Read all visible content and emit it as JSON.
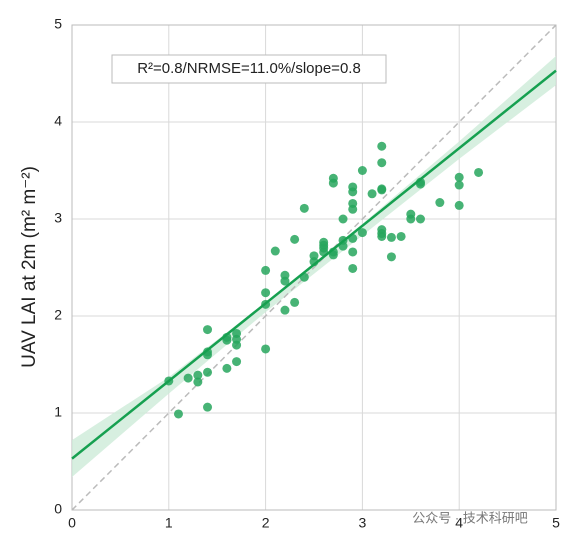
{
  "chart_data": {
    "type": "scatter",
    "ylabel": "UAV LAI at 2m (m² m⁻²)",
    "annotation": "R²=0.8/NRMSE=11.0%/slope=0.8",
    "watermark": "公众号 · 技术科研吧",
    "xlim": [
      0,
      5
    ],
    "ylim": [
      0,
      5
    ],
    "xticks": [
      0,
      1,
      2,
      3,
      4,
      5
    ],
    "yticks": [
      0,
      1,
      2,
      3,
      4,
      5
    ],
    "grid": true,
    "points": {
      "color": "#27a65d",
      "x": [
        1.0,
        1.1,
        1.2,
        1.3,
        1.3,
        1.4,
        1.4,
        1.4,
        1.4,
        1.4,
        1.6,
        1.6,
        1.6,
        1.7,
        1.7,
        1.7,
        1.7,
        2.0,
        2.0,
        2.0,
        2.0,
        2.1,
        2.2,
        2.2,
        2.2,
        2.3,
        2.3,
        2.4,
        2.4,
        2.5,
        2.5,
        2.6,
        2.6,
        2.6,
        2.6,
        2.7,
        2.7,
        2.7,
        2.7,
        2.8,
        2.8,
        2.8,
        2.9,
        2.9,
        2.9,
        2.9,
        2.9,
        2.9,
        2.9,
        3.0,
        3.0,
        3.1,
        3.2,
        3.2,
        3.2,
        3.2,
        3.2,
        3.2,
        3.2,
        3.3,
        3.3,
        3.4,
        3.6,
        3.6,
        3.5,
        3.5,
        3.6,
        3.8,
        4.0,
        4.0,
        4.0,
        4.2
      ],
      "y": [
        1.33,
        0.99,
        1.36,
        1.39,
        1.32,
        1.86,
        1.6,
        1.63,
        1.42,
        1.06,
        1.46,
        1.75,
        1.78,
        1.76,
        1.7,
        1.53,
        1.82,
        2.47,
        2.24,
        2.12,
        1.66,
        2.67,
        2.42,
        2.36,
        2.06,
        2.79,
        2.14,
        2.4,
        3.11,
        2.62,
        2.56,
        2.73,
        2.7,
        2.66,
        2.76,
        3.42,
        3.37,
        2.66,
        2.63,
        3.0,
        2.72,
        2.78,
        3.33,
        3.28,
        3.16,
        3.1,
        2.8,
        2.66,
        2.49,
        3.5,
        2.86,
        3.26,
        3.75,
        3.58,
        3.31,
        3.3,
        2.89,
        2.85,
        2.82,
        2.61,
        2.81,
        2.82,
        3.36,
        3.38,
        3.0,
        3.05,
        3.0,
        3.17,
        3.43,
        3.35,
        3.14,
        3.48
      ]
    },
    "fit": {
      "color": "#16a050",
      "x": [
        0,
        5
      ],
      "y": [
        0.53,
        4.53
      ]
    },
    "band": {
      "color": "#cdebd8",
      "x": [
        0,
        1,
        2,
        3,
        4,
        5
      ],
      "upper": [
        0.72,
        1.37,
        2.14,
        2.95,
        3.8,
        4.68
      ],
      "lower": [
        0.34,
        1.2,
        2.04,
        2.83,
        3.62,
        4.38
      ]
    },
    "identity": {
      "color": "#bbbbbb",
      "x": [
        0,
        5
      ],
      "y": [
        0,
        5
      ]
    }
  }
}
